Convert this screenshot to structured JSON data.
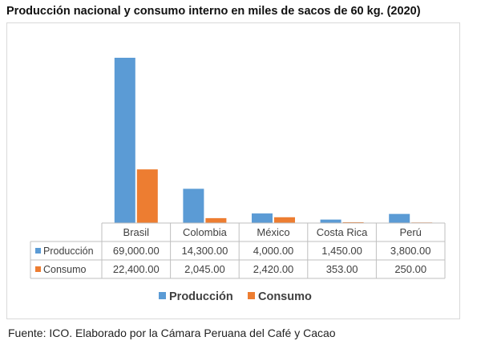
{
  "title": "Producción nacional y consumo interno en miles de sacos de 60 kg. (2020)",
  "source": "Fuente: ICO. Elaborado por la Cámara Peruana del Café y Cacao",
  "chart_data": {
    "type": "bar",
    "categories": [
      "Brasil",
      "Colombia",
      "México",
      "Costa Rica",
      "Perú"
    ],
    "series": [
      {
        "name": "Producción",
        "color": "#5b9bd5",
        "values": [
          69000,
          14300,
          4000,
          1450,
          3800
        ],
        "labels": [
          "69,000.00",
          "14,300.00",
          "4,000.00",
          "1,450.00",
          "3,800.00"
        ]
      },
      {
        "name": "Consumo",
        "color": "#ed7d31",
        "values": [
          22400,
          2045,
          2420,
          353,
          250
        ],
        "labels": [
          "22,400.00",
          "2,045.00",
          "2,420.00",
          "353.00",
          "250.00"
        ]
      }
    ],
    "ylim": [
      0,
      69000
    ],
    "legend_position": "bottom",
    "grid": false,
    "data_table": true
  }
}
